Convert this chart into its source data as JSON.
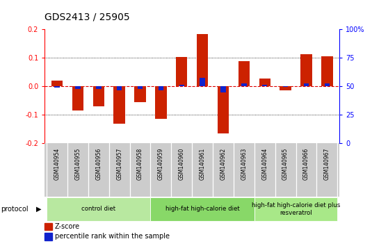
{
  "title": "GDS2413 / 25905",
  "samples": [
    "GSM140954",
    "GSM140955",
    "GSM140956",
    "GSM140957",
    "GSM140958",
    "GSM140959",
    "GSM140960",
    "GSM140961",
    "GSM140962",
    "GSM140963",
    "GSM140964",
    "GSM140965",
    "GSM140966",
    "GSM140967"
  ],
  "zscore": [
    0.02,
    -0.085,
    -0.07,
    -0.13,
    -0.055,
    -0.115,
    0.103,
    0.183,
    -0.165,
    0.088,
    0.028,
    -0.015,
    0.113,
    0.105
  ],
  "pct_rank": [
    -0.005,
    -0.01,
    -0.01,
    -0.015,
    -0.01,
    -0.015,
    0.005,
    0.03,
    -0.02,
    0.01,
    0.005,
    -0.002,
    0.01,
    0.01
  ],
  "ylim": [
    -0.2,
    0.2
  ],
  "yticks_left": [
    -0.2,
    -0.1,
    0.0,
    0.1,
    0.2
  ],
  "yticks_right": [
    0,
    25,
    50,
    75,
    100
  ],
  "yticks_right_vals": [
    -0.2,
    -0.1,
    0.0,
    0.1,
    0.2
  ],
  "groups": [
    {
      "label": "control diet",
      "start": 0,
      "end": 5,
      "color": "#b8e8a0"
    },
    {
      "label": "high-fat high-calorie diet",
      "start": 5,
      "end": 10,
      "color": "#88d868"
    },
    {
      "label": "high-fat high-calorie diet plus\nresveratrol",
      "start": 10,
      "end": 14,
      "color": "#a8e888"
    }
  ],
  "bar_color_red": "#cc2200",
  "bar_color_blue": "#1122cc",
  "red_dashed_color": "#dd0000",
  "background_plot": "#ffffff",
  "background_sample": "#cccccc",
  "title_fontsize": 10,
  "tick_fontsize": 7,
  "label_fontsize": 5.5,
  "bar_width": 0.55
}
